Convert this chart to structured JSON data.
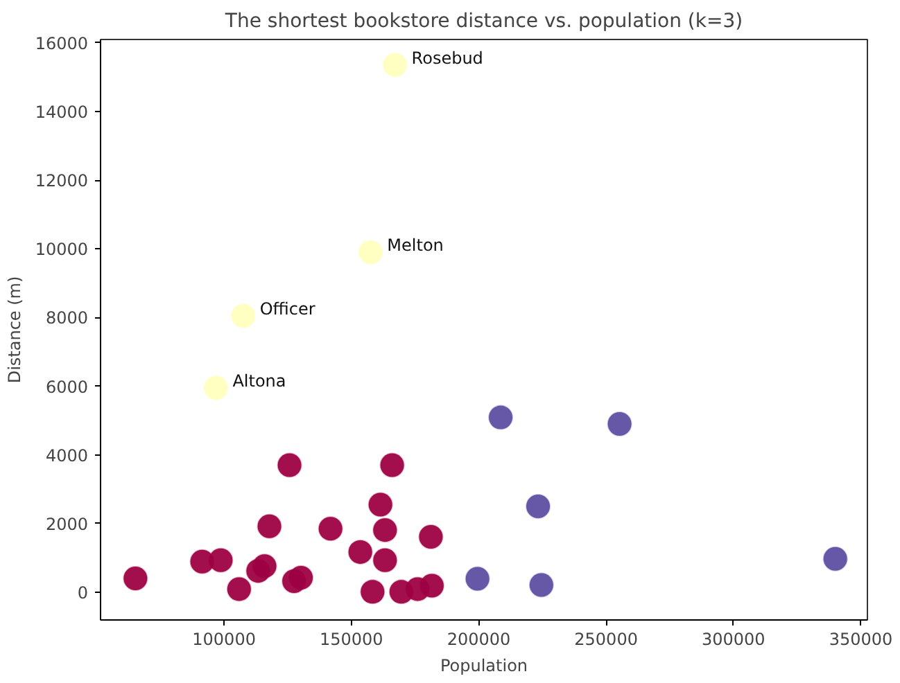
{
  "chart_data": {
    "type": "scatter",
    "title": "The shortest bookstore distance vs. population (k=3)",
    "xlabel": "Population",
    "ylabel": "Distance (m)",
    "xlim": [
      51500,
      352600
    ],
    "ylim": [
      -810,
      16100
    ],
    "xticks": [
      100000,
      150000,
      200000,
      250000,
      300000,
      350000
    ],
    "yticks": [
      0,
      2000,
      4000,
      6000,
      8000,
      10000,
      12000,
      14000,
      16000
    ],
    "grid": false,
    "marker": "circle",
    "series": [
      {
        "color": "#9e0142",
        "x": [
          65200,
          91400,
          98700,
          105900,
          113400,
          115900,
          117800,
          125700,
          127500,
          130200,
          141800,
          153500,
          158300,
          161400,
          163200,
          163200,
          166000,
          169600,
          176000,
          181600,
          181200
        ],
        "values": [
          400,
          890,
          930,
          90,
          620,
          760,
          1920,
          3700,
          320,
          420,
          1850,
          1170,
          10,
          2550,
          1810,
          930,
          3700,
          10,
          90,
          190,
          1610
        ]
      },
      {
        "color": "#5e4fa2",
        "x": [
          208600,
          255300,
          223300,
          199500,
          224600,
          340000
        ],
        "values": [
          5090,
          4900,
          2500,
          390,
          210,
          970
        ]
      },
      {
        "color": "#ffffbf",
        "x": [
          167100,
          157500,
          107500,
          96800
        ],
        "values": [
          15360,
          9900,
          8050,
          5950
        ]
      }
    ],
    "annotations": [
      {
        "text": "Rosebud",
        "x": 167100,
        "y": 15360
      },
      {
        "text": "Melton",
        "x": 157500,
        "y": 9900
      },
      {
        "text": "Officer",
        "x": 107500,
        "y": 8050
      },
      {
        "text": "Altona",
        "x": 96800,
        "y": 5950
      }
    ]
  }
}
